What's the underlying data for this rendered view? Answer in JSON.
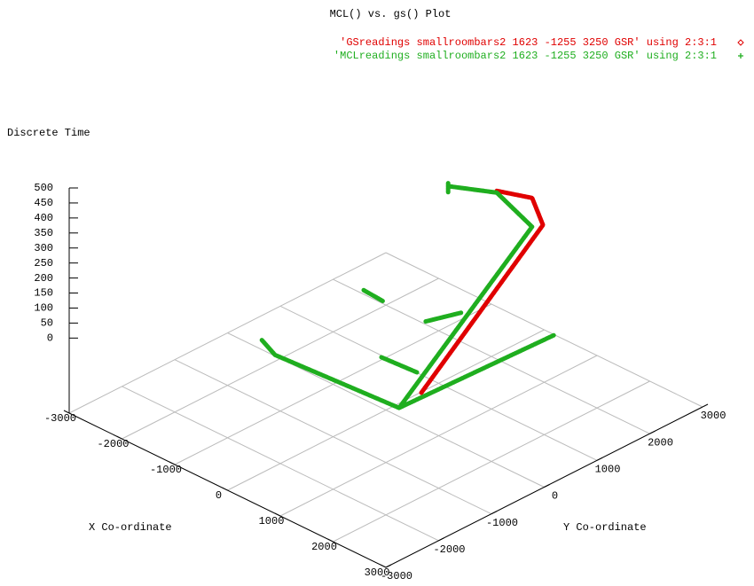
{
  "chart_data": {
    "type": "scatter3d",
    "title": "MCL() vs. gs() Plot",
    "zlabel": "Discrete Time",
    "xlabel": "X Co-ordinate",
    "ylabel": "Y Co-ordinate",
    "xlim": [
      -3000,
      3000
    ],
    "ylim": [
      -3000,
      3000
    ],
    "zlim": [
      0,
      500
    ],
    "xticks": [
      -3000,
      -2000,
      -1000,
      0,
      1000,
      2000,
      3000
    ],
    "yticks": [
      -3000,
      -2000,
      -1000,
      0,
      1000,
      2000,
      3000
    ],
    "zticks": [
      0,
      50,
      100,
      150,
      200,
      250,
      300,
      350,
      400,
      450,
      500
    ],
    "grid": true,
    "legend": "top-right",
    "series": [
      {
        "name": "'GSreadings smallroombars2 1623 -1255 3250 GSR' using 2:3:1",
        "color": "#e00000",
        "marker": "diamond",
        "x": [
          1788,
          1710,
          1434,
          1014
        ],
        "y": [
          -1116,
          1266,
          1338,
          1086
        ],
        "z": [
          60,
          400,
          460,
          470
        ]
      },
      {
        "name": "'MCLreadings smallroombars2 1623 -1255 3250 GSR' using 2:3:1",
        "color": "#1fae1f",
        "marker": "plus",
        "x": [
          -1100,
          -660,
          1690,
          null,
          1690,
          1800,
          null,
          1690,
          1640,
          990,
          570,
          null,
          570,
          570,
          null,
          -210,
          180,
          null,
          700,
          876,
          null,
          726,
          1356
        ],
        "y": [
          -1250,
          -1440,
          -1440,
          null,
          -1440,
          1380,
          null,
          -1440,
          1130,
          1110,
          610,
          null,
          610,
          610,
          null,
          -210,
          -240,
          null,
          54,
          552,
          null,
          -810,
          -768
        ],
        "z": [
          0,
          5,
          30,
          null,
          30,
          30,
          null,
          30,
          400,
          460,
          490,
          null,
          470,
          500,
          null,
          150,
          150,
          null,
          100,
          100,
          null,
          60,
          60
        ]
      }
    ]
  }
}
